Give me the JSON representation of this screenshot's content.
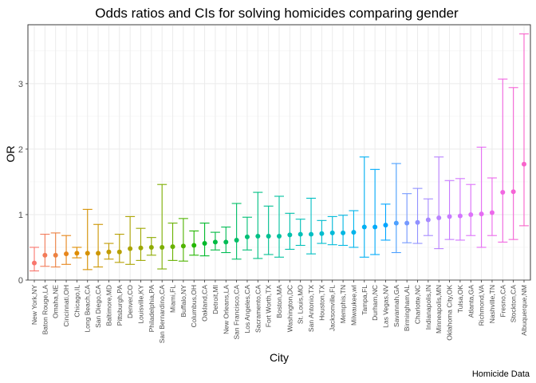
{
  "chart_data": {
    "type": "errorbar",
    "title": "Odds ratios and CIs for solving homicides comparing gender",
    "xlabel": "City",
    "ylabel": "OR",
    "caption": "Homicide Data",
    "ylim": [
      0,
      3.9
    ],
    "yticks": [
      "0",
      "1",
      "2",
      "3"
    ],
    "grid": true,
    "legend": "none",
    "points": [
      {
        "city": "New York,NY",
        "or": 0.26,
        "lo": 0.14,
        "hi": 0.5,
        "color": "#F8766D"
      },
      {
        "city": "Baton Rouge,LA",
        "or": 0.38,
        "lo": 0.21,
        "hi": 0.7,
        "color": "#F37B59"
      },
      {
        "city": "Omaha,NE",
        "or": 0.38,
        "lo": 0.2,
        "hi": 0.72,
        "color": "#ED8141"
      },
      {
        "city": "Cincinnati,OH",
        "or": 0.4,
        "lo": 0.24,
        "hi": 0.68,
        "color": "#E7861B"
      },
      {
        "city": "Chicago,IL",
        "or": 0.41,
        "lo": 0.34,
        "hi": 0.5,
        "color": "#DF8C00"
      },
      {
        "city": "Long Beach,CA",
        "or": 0.41,
        "lo": 0.16,
        "hi": 1.08,
        "color": "#D69100"
      },
      {
        "city": "San Diego,CA",
        "or": 0.41,
        "lo": 0.2,
        "hi": 0.85,
        "color": "#CD9600"
      },
      {
        "city": "Baltimore,MD",
        "or": 0.43,
        "lo": 0.32,
        "hi": 0.56,
        "color": "#C29B00"
      },
      {
        "city": "Pittsburgh,PA",
        "or": 0.43,
        "lo": 0.27,
        "hi": 0.7,
        "color": "#B79F00"
      },
      {
        "city": "Denver,CO",
        "or": 0.48,
        "lo": 0.24,
        "hi": 0.97,
        "color": "#ABA300"
      },
      {
        "city": "Louisville,KY",
        "or": 0.49,
        "lo": 0.3,
        "hi": 0.79,
        "color": "#9DA700"
      },
      {
        "city": "Philadelphia,PA",
        "or": 0.5,
        "lo": 0.38,
        "hi": 0.65,
        "color": "#8EAB00"
      },
      {
        "city": "San Bernardino,CA",
        "or": 0.5,
        "lo": 0.17,
        "hi": 1.46,
        "color": "#7CAE00"
      },
      {
        "city": "Miami,FL",
        "or": 0.51,
        "lo": 0.3,
        "hi": 0.87,
        "color": "#68B100"
      },
      {
        "city": "Buffalo,NY",
        "or": 0.52,
        "lo": 0.29,
        "hi": 0.94,
        "color": "#4FB400"
      },
      {
        "city": "Columbus,OH",
        "or": 0.53,
        "lo": 0.38,
        "hi": 0.75,
        "color": "#24B700"
      },
      {
        "city": "Oakland,CA",
        "or": 0.56,
        "lo": 0.37,
        "hi": 0.87,
        "color": "#00B92A"
      },
      {
        "city": "Detroit,MI",
        "or": 0.58,
        "lo": 0.46,
        "hi": 0.73,
        "color": "#00BB42"
      },
      {
        "city": "New Orleans,LA",
        "or": 0.58,
        "lo": 0.42,
        "hi": 0.81,
        "color": "#00BC55"
      },
      {
        "city": "San Francisco,CA",
        "or": 0.61,
        "lo": 0.32,
        "hi": 1.17,
        "color": "#00BE66"
      },
      {
        "city": "Los Angeles,CA",
        "or": 0.66,
        "lo": 0.46,
        "hi": 0.96,
        "color": "#00BF75"
      },
      {
        "city": "Sacramento,CA",
        "or": 0.67,
        "lo": 0.33,
        "hi": 1.34,
        "color": "#00C084"
      },
      {
        "city": "Fort Worth,TX",
        "or": 0.67,
        "lo": 0.39,
        "hi": 1.13,
        "color": "#00C091"
      },
      {
        "city": "Boston,MA",
        "or": 0.67,
        "lo": 0.35,
        "hi": 1.28,
        "color": "#00C19E"
      },
      {
        "city": "Washington,DC",
        "or": 0.69,
        "lo": 0.47,
        "hi": 1.02,
        "color": "#00C0AB"
      },
      {
        "city": "St. Louis,MO",
        "or": 0.7,
        "lo": 0.53,
        "hi": 0.93,
        "color": "#00BFB7"
      },
      {
        "city": "San Antonio,TX",
        "or": 0.7,
        "lo": 0.4,
        "hi": 1.25,
        "color": "#00BEC3"
      },
      {
        "city": "Houston,TX",
        "or": 0.71,
        "lo": 0.56,
        "hi": 0.91,
        "color": "#00BCCE"
      },
      {
        "city": "Jacksonville,FL",
        "or": 0.72,
        "lo": 0.54,
        "hi": 0.97,
        "color": "#00BAD8"
      },
      {
        "city": "Memphis,TN",
        "or": 0.72,
        "lo": 0.53,
        "hi": 0.99,
        "color": "#00B7E2"
      },
      {
        "city": "Milwaukee,wI",
        "or": 0.73,
        "lo": 0.5,
        "hi": 1.06,
        "color": "#00B4EB"
      },
      {
        "city": "Tampa,FL",
        "or": 0.81,
        "lo": 0.35,
        "hi": 1.88,
        "color": "#00B0F3"
      },
      {
        "city": "Durham,NC",
        "or": 0.81,
        "lo": 0.39,
        "hi": 1.69,
        "color": "#00ABFA"
      },
      {
        "city": "Las Vegas,NV",
        "or": 0.84,
        "lo": 0.61,
        "hi": 1.16,
        "color": "#00A5FF"
      },
      {
        "city": "Savannah,GA",
        "or": 0.87,
        "lo": 0.42,
        "hi": 1.78,
        "color": "#4CA0FF"
      },
      {
        "city": "Birmingham,AL",
        "or": 0.87,
        "lo": 0.57,
        "hi": 1.32,
        "color": "#7599FF"
      },
      {
        "city": "Charlotte,NC",
        "or": 0.88,
        "lo": 0.56,
        "hi": 1.4,
        "color": "#9191FF"
      },
      {
        "city": "Indianapolis,IN",
        "or": 0.92,
        "lo": 0.68,
        "hi": 1.24,
        "color": "#A78AFF"
      },
      {
        "city": "Minneapolis,MN",
        "or": 0.95,
        "lo": 0.48,
        "hi": 1.88,
        "color": "#B982FF"
      },
      {
        "city": "Oklahoma City,OK",
        "or": 0.97,
        "lo": 0.62,
        "hi": 1.52,
        "color": "#C77CFF"
      },
      {
        "city": "Tulsa,OK",
        "or": 0.98,
        "lo": 0.61,
        "hi": 1.55,
        "color": "#D376FF"
      },
      {
        "city": "Atlanta,GA",
        "or": 1.0,
        "lo": 0.68,
        "hi": 1.46,
        "color": "#DD71FA"
      },
      {
        "city": "Richmond,VA",
        "or": 1.01,
        "lo": 0.5,
        "hi": 2.03,
        "color": "#E56CF3"
      },
      {
        "city": "Nashville,TN",
        "or": 1.03,
        "lo": 0.68,
        "hi": 1.56,
        "color": "#EC69EB"
      },
      {
        "city": "Fresno,CA",
        "or": 1.34,
        "lo": 0.58,
        "hi": 3.07,
        "color": "#F166E1"
      },
      {
        "city": "Stockton,CA",
        "or": 1.35,
        "lo": 0.62,
        "hi": 2.94,
        "color": "#F564D6"
      },
      {
        "city": "Albuquerque,NM",
        "or": 1.77,
        "lo": 0.83,
        "hi": 3.76,
        "color": "#F863CA"
      }
    ]
  }
}
